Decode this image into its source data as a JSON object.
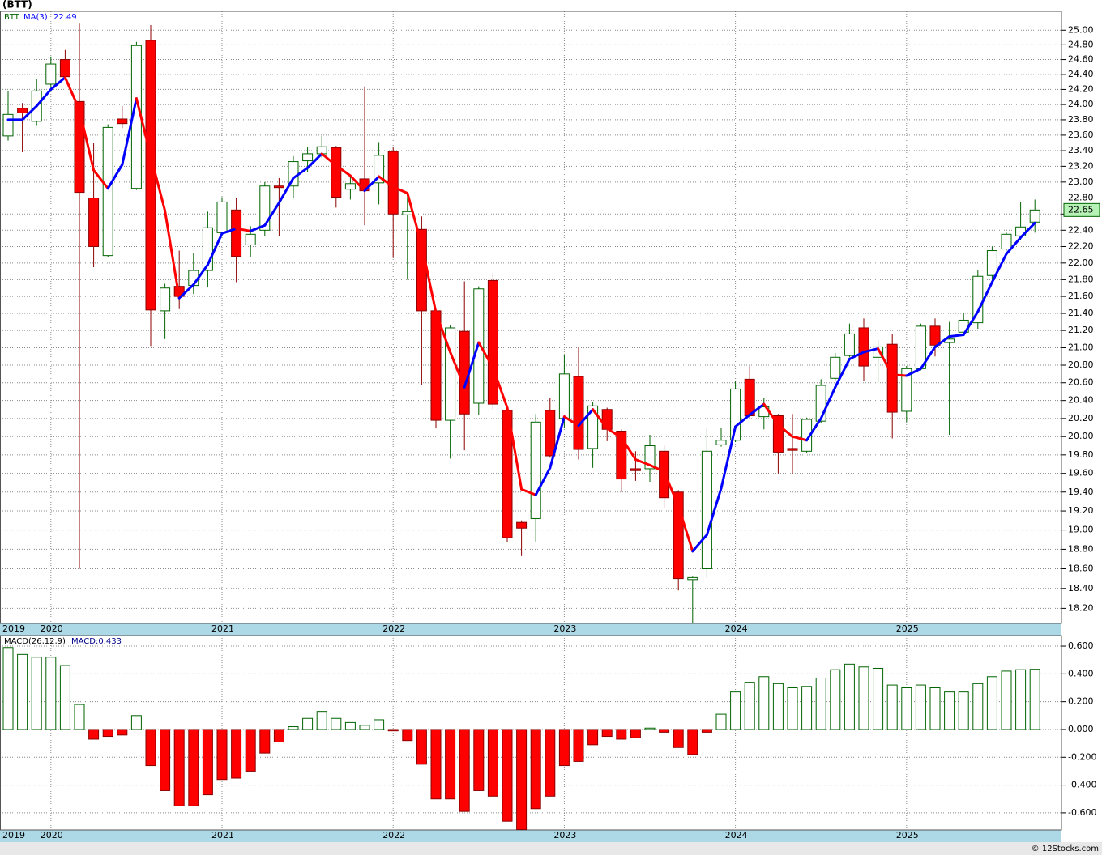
{
  "chart_data": [
    {
      "type": "candlestick",
      "title": "(BTT)",
      "ticker": "BTT",
      "categories": [
        "2019",
        null,
        null,
        "2020",
        null,
        null,
        null,
        null,
        null,
        null,
        null,
        null,
        null,
        null,
        null,
        "2021",
        null,
        null,
        null,
        null,
        null,
        null,
        null,
        null,
        null,
        null,
        null,
        "2022",
        null,
        null,
        null,
        null,
        null,
        null,
        null,
        null,
        null,
        null,
        null,
        "2023",
        null,
        null,
        null,
        null,
        null,
        null,
        null,
        null,
        null,
        null,
        null,
        "2024",
        null,
        null,
        null,
        null,
        null,
        null,
        null,
        null,
        null,
        null,
        null,
        "2025",
        null,
        null,
        null,
        null,
        null,
        null,
        null,
        null,
        null
      ],
      "open": [
        23.59,
        23.95,
        23.78,
        24.27,
        24.6,
        24.04,
        22.8,
        22.09,
        23.81,
        22.92,
        24.86,
        21.43,
        21.72,
        21.73,
        21.91,
        22.37,
        22.65,
        22.22,
        22.4,
        22.95,
        22.95,
        23.27,
        23.36,
        23.44,
        22.91,
        23.04,
        22.99,
        23.39,
        22.59,
        22.41,
        21.43,
        20.18,
        21.19,
        20.37,
        21.79,
        20.29,
        19.08,
        19.12,
        20.29,
        20.2,
        20.67,
        19.87,
        20.3,
        20.06,
        19.65,
        19.65,
        19.84,
        19.4,
        18.49,
        18.6,
        19.91,
        19.96,
        20.64,
        20.22,
        20.23,
        19.87,
        19.84,
        20.17,
        20.65,
        20.91,
        21.23,
        20.89,
        21.04,
        20.28,
        20.76,
        21.25,
        21.06,
        21.18,
        21.29,
        21.85,
        22.17,
        22.33,
        22.5
      ],
      "high": [
        24.18,
        24.02,
        24.34,
        24.64,
        24.73,
        25.09,
        23.5,
        23.74,
        23.98,
        24.84,
        25.07,
        21.75,
        22.15,
        22.12,
        22.63,
        22.81,
        22.8,
        22.45,
        23.0,
        23.05,
        23.33,
        23.45,
        23.59,
        23.46,
        23.08,
        24.24,
        23.51,
        23.44,
        22.85,
        22.57,
        21.45,
        21.26,
        21.78,
        21.72,
        21.88,
        20.31,
        19.1,
        20.25,
        20.43,
        20.92,
        21.01,
        20.38,
        20.32,
        20.08,
        19.84,
        20.02,
        19.91,
        19.42,
        18.52,
        20.1,
        20.1,
        20.62,
        20.79,
        20.43,
        20.25,
        20.25,
        20.21,
        20.64,
        20.94,
        21.28,
        21.34,
        21.09,
        21.16,
        20.79,
        21.28,
        21.34,
        21.3,
        21.41,
        21.91,
        22.2,
        22.37,
        22.75,
        22.78
      ],
      "low": [
        23.53,
        23.38,
        23.72,
        24.2,
        24.32,
        18.6,
        21.95,
        22.07,
        23.69,
        22.9,
        21.02,
        21.1,
        21.45,
        21.63,
        21.71,
        22.33,
        21.77,
        22.07,
        22.33,
        22.33,
        22.8,
        23.13,
        23.31,
        22.68,
        22.78,
        22.46,
        22.72,
        22.06,
        21.8,
        20.57,
        20.09,
        19.76,
        19.85,
        20.24,
        20.3,
        18.87,
        18.73,
        18.87,
        19.77,
        20.1,
        19.75,
        19.66,
        19.95,
        19.4,
        19.52,
        19.51,
        19.23,
        18.38,
        18.05,
        18.51,
        19.89,
        19.94,
        20.21,
        20.08,
        19.6,
        19.6,
        19.82,
        20.15,
        20.63,
        20.89,
        20.62,
        20.6,
        19.98,
        20.16,
        20.74,
        20.9,
        20.02,
        21.14,
        21.22,
        21.8,
        22.15,
        22.28,
        22.37
      ],
      "close": [
        23.87,
        23.89,
        24.18,
        24.54,
        24.37,
        22.87,
        22.2,
        23.7,
        23.75,
        24.79,
        21.44,
        21.7,
        21.6,
        21.91,
        22.43,
        22.75,
        22.08,
        22.35,
        22.95,
        22.93,
        23.26,
        23.36,
        23.45,
        22.81,
        22.98,
        22.89,
        23.34,
        22.6,
        22.63,
        21.43,
        20.18,
        21.23,
        20.25,
        21.69,
        20.36,
        18.92,
        19.02,
        20.16,
        19.79,
        20.7,
        19.86,
        20.34,
        20.08,
        19.54,
        19.63,
        19.9,
        19.34,
        18.5,
        18.51,
        19.84,
        19.96,
        20.53,
        20.23,
        20.33,
        19.83,
        19.85,
        20.19,
        20.57,
        20.89,
        21.16,
        20.79,
        21.01,
        20.27,
        20.76,
        21.25,
        21.03,
        21.1,
        21.32,
        21.84,
        22.15,
        22.35,
        22.44,
        22.65
      ],
      "up_color": "#ffffff",
      "up_edge_color": "#006400",
      "down_color": "#ff0000",
      "down_edge_color": "#8b0000",
      "log_scale": true,
      "grid": true,
      "ylim": [
        18.05,
        25.26
      ],
      "yticks": [
        {
          "value": 18.2,
          "label": "18.20"
        },
        {
          "value": 18.4,
          "label": "18.40"
        },
        {
          "value": 18.6,
          "label": "18.60"
        },
        {
          "value": 18.8,
          "label": "18.80"
        },
        {
          "value": 19,
          "label": "19.00"
        },
        {
          "value": 19.2,
          "label": "19.20"
        },
        {
          "value": 19.4,
          "label": "19.40"
        },
        {
          "value": 19.6,
          "label": "19.60"
        },
        {
          "value": 19.8,
          "label": "19.80"
        },
        {
          "value": 20,
          "label": "20.00"
        },
        {
          "value": 20.2,
          "label": "20.20"
        },
        {
          "value": 20.4,
          "label": "20.40"
        },
        {
          "value": 20.6,
          "label": "20.60"
        },
        {
          "value": 20.8,
          "label": "20.80"
        },
        {
          "value": 21,
          "label": "21.00"
        },
        {
          "value": 21.2,
          "label": "21.20"
        },
        {
          "value": 21.4,
          "label": "21.40"
        },
        {
          "value": 21.6,
          "label": "21.60"
        },
        {
          "value": 21.8,
          "label": "21.80"
        },
        {
          "value": 22,
          "label": "22.00"
        },
        {
          "value": 22.2,
          "label": "22.20"
        },
        {
          "value": 22.4,
          "label": "22.40"
        },
        {
          "value": 22.6,
          "label": "22.60"
        },
        {
          "value": 22.8,
          "label": "22.80"
        },
        {
          "value": 23,
          "label": "23.00"
        },
        {
          "value": 23.2,
          "label": "23.20"
        },
        {
          "value": 23.4,
          "label": "23.40"
        },
        {
          "value": 23.6,
          "label": "23.60"
        },
        {
          "value": 23.8,
          "label": "23.80"
        },
        {
          "value": 24,
          "label": "24.00"
        },
        {
          "value": 24.2,
          "label": "24.20"
        },
        {
          "value": 24.4,
          "label": "24.40"
        },
        {
          "value": 24.6,
          "label": "24.60"
        },
        {
          "value": 24.8,
          "label": "24.80"
        },
        {
          "value": 25,
          "label": "25.00"
        }
      ],
      "overlay": {
        "type": "line",
        "name": "MA(3)",
        "rise_color": "#0000ff",
        "fall_color": "#ff0000",
        "values": [
          23.8,
          23.8,
          23.98,
          24.2,
          24.36,
          23.93,
          23.15,
          22.92,
          23.22,
          24.08,
          23.33,
          22.64,
          21.58,
          21.74,
          21.98,
          22.36,
          22.42,
          22.39,
          22.46,
          22.74,
          23.05,
          23.18,
          23.36,
          23.21,
          23.08,
          22.89,
          23.07,
          22.94,
          22.86,
          22.22,
          21.41,
          20.95,
          20.55,
          21.06,
          20.77,
          20.32,
          19.43,
          19.37,
          19.66,
          20.22,
          20.12,
          20.3,
          20.09,
          19.99,
          19.75,
          19.69,
          19.62,
          19.25,
          18.78,
          18.95,
          19.44,
          20.11,
          20.24,
          20.36,
          20.13,
          20.0,
          19.96,
          20.2,
          20.55,
          20.87,
          20.95,
          20.99,
          20.69,
          20.68,
          20.76,
          21.01,
          21.13,
          21.15,
          21.42,
          21.77,
          22.11,
          22.31,
          22.49
        ]
      }
    },
    {
      "type": "bar",
      "title": "MACD(26,12,9)",
      "value_prefix": "MACD:",
      "categories": [
        "2019",
        null,
        null,
        "2020",
        null,
        null,
        null,
        null,
        null,
        null,
        null,
        null,
        null,
        null,
        null,
        "2021",
        null,
        null,
        null,
        null,
        null,
        null,
        null,
        null,
        null,
        null,
        null,
        "2022",
        null,
        null,
        null,
        null,
        null,
        null,
        null,
        null,
        null,
        null,
        null,
        "2023",
        null,
        null,
        null,
        null,
        null,
        null,
        null,
        null,
        null,
        null,
        null,
        "2024",
        null,
        null,
        null,
        null,
        null,
        null,
        null,
        null,
        null,
        null,
        null,
        "2025",
        null,
        null,
        null,
        null,
        null,
        null,
        null,
        null,
        null
      ],
      "values": [
        0.59,
        0.54,
        0.52,
        0.52,
        0.46,
        0.18,
        -0.07,
        -0.05,
        -0.04,
        0.1,
        -0.26,
        -0.44,
        -0.55,
        -0.55,
        -0.47,
        -0.36,
        -0.35,
        -0.3,
        -0.17,
        -0.09,
        0.02,
        0.08,
        0.13,
        0.08,
        0.05,
        0.03,
        0.07,
        -0.01,
        -0.08,
        -0.25,
        -0.5,
        -0.5,
        -0.59,
        -0.44,
        -0.48,
        -0.66,
        -0.72,
        -0.57,
        -0.48,
        -0.26,
        -0.23,
        -0.11,
        -0.05,
        -0.07,
        -0.06,
        0.01,
        -0.02,
        -0.13,
        -0.18,
        -0.02,
        0.11,
        0.27,
        0.34,
        0.38,
        0.33,
        0.3,
        0.31,
        0.37,
        0.43,
        0.47,
        0.45,
        0.44,
        0.32,
        0.3,
        0.32,
        0.3,
        0.27,
        0.27,
        0.33,
        0.38,
        0.42,
        0.43,
        0.433
      ],
      "positive_color": "#006400",
      "negative_color": "#ff0000",
      "grid": true,
      "ylim": [
        -0.723,
        0.676
      ],
      "yticks": [
        {
          "value": -0.6,
          "label": "-0.600"
        },
        {
          "value": -0.4,
          "label": "-0.400"
        },
        {
          "value": -0.2,
          "label": "-0.200"
        },
        {
          "value": 0,
          "label": "0.000"
        },
        {
          "value": 0.2,
          "label": "0.200"
        },
        {
          "value": 0.4,
          "label": "0.400"
        },
        {
          "value": 0.6,
          "label": "0.600"
        }
      ]
    }
  ],
  "footer": "© 12Stocks.com"
}
